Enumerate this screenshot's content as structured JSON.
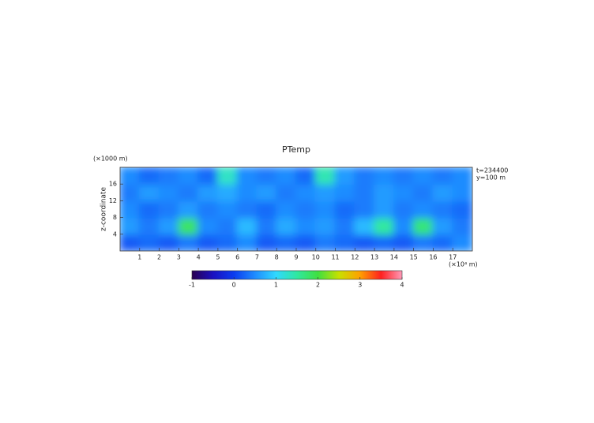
{
  "chart_data": {
    "type": "heatmap",
    "title": "PTemp",
    "y_unit": "(×1000 m)",
    "y_label": "z-coordinate",
    "x_unit": "(×10⁴ m)",
    "annotations": [
      "t=234400",
      "y=100 m"
    ],
    "xlim": [
      0,
      18
    ],
    "xticks": [
      1,
      2,
      3,
      4,
      5,
      6,
      7,
      8,
      9,
      10,
      11,
      12,
      13,
      14,
      15,
      16,
      17
    ],
    "ylim": [
      0,
      20
    ],
    "yticks": [
      4,
      8,
      12,
      16
    ],
    "clim": [
      -1,
      4
    ],
    "cticks": [
      -1,
      0,
      1,
      2,
      3,
      4
    ],
    "colormap": [
      "#2a0050",
      "#1a10c0",
      "#0b3cf0",
      "#1f8cff",
      "#30d8ff",
      "#30e8a0",
      "#40e040",
      "#c8e000",
      "#ffa000",
      "#ff2020",
      "#ff9ab8"
    ],
    "z": [
      [
        0.2,
        0.3,
        0.2,
        0.4,
        0.2,
        0.3,
        0.5,
        0.2,
        0.3,
        0.2,
        0.4,
        0.3,
        0.2,
        0.3,
        0.2,
        0.4,
        0.3,
        0.5
      ],
      [
        0.6,
        0.4,
        0.6,
        1.8,
        0.5,
        0.4,
        0.8,
        0.4,
        0.7,
        0.5,
        0.6,
        0.4,
        0.8,
        1.5,
        0.5,
        1.7,
        0.6,
        0.4
      ],
      [
        0.5,
        0.3,
        0.4,
        0.6,
        0.4,
        0.5,
        0.4,
        0.3,
        0.5,
        0.4,
        0.5,
        0.3,
        0.4,
        0.6,
        0.4,
        0.5,
        0.4,
        0.3
      ],
      [
        0.4,
        0.6,
        0.5,
        0.4,
        0.6,
        0.7,
        0.5,
        0.6,
        0.4,
        0.5,
        0.6,
        0.5,
        0.4,
        0.6,
        0.5,
        0.4,
        0.6,
        0.5
      ],
      [
        0.5,
        0.3,
        0.4,
        0.5,
        0.3,
        1.3,
        0.5,
        0.4,
        0.5,
        0.3,
        1.4,
        0.6,
        0.4,
        0.5,
        0.4,
        0.5,
        0.4,
        0.5
      ]
    ]
  }
}
